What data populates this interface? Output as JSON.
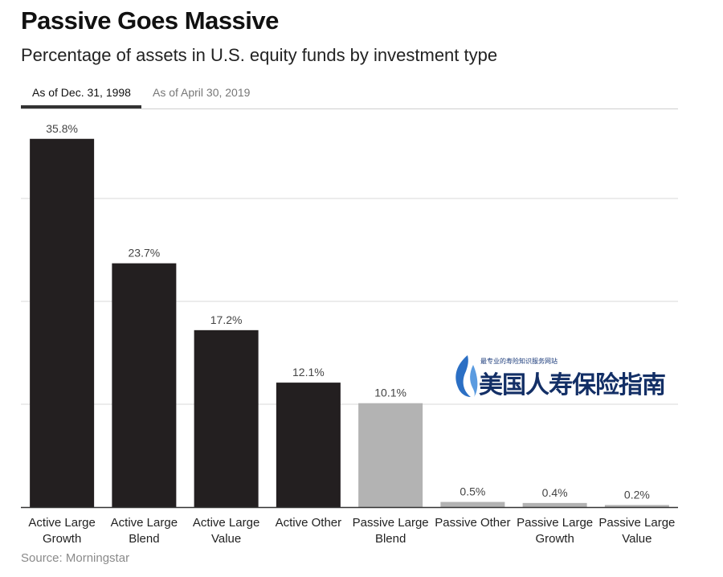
{
  "title": "Passive Goes Massive",
  "subtitle": "Percentage of assets in U.S. equity funds by investment type",
  "tabs": [
    {
      "label": "As of Dec. 31, 1998",
      "active": true
    },
    {
      "label": "As of April 30, 2019",
      "active": false
    }
  ],
  "source": "Source: Morningstar",
  "watermark": {
    "small_text": "最专业的寿险知识服务网站",
    "big_text": "美国人寿保险指南"
  },
  "colors": {
    "active_bar": "#231f20",
    "passive_bar": "#b3b3b3",
    "gridline": "#d9d9d9",
    "baseline": "#333333"
  },
  "chart_data": {
    "type": "bar",
    "title": "Passive Goes Massive",
    "subtitle": "Percentage of assets in U.S. equity funds by investment type",
    "categories": [
      [
        "Active Large",
        "Growth"
      ],
      [
        "Active Large",
        "Blend"
      ],
      [
        "Active Large",
        "Value"
      ],
      [
        "Active Other"
      ],
      [
        "Passive Large",
        "Blend"
      ],
      [
        "Passive Other"
      ],
      [
        "Passive Large",
        "Growth"
      ],
      [
        "Passive Large",
        "Value"
      ]
    ],
    "values": [
      35.8,
      23.7,
      17.2,
      12.1,
      10.1,
      0.5,
      0.4,
      0.2
    ],
    "data_labels": [
      "35.8%",
      "23.7%",
      "17.2%",
      "12.1%",
      "10.1%",
      "0.5%",
      "0.4%",
      "0.2%"
    ],
    "group": [
      "active",
      "active",
      "active",
      "active",
      "passive",
      "passive",
      "passive",
      "passive"
    ],
    "ylim": [
      0,
      38
    ],
    "gridlines": [
      0,
      10,
      20,
      30
    ],
    "grid": true,
    "xlabel": "",
    "ylabel": ""
  }
}
